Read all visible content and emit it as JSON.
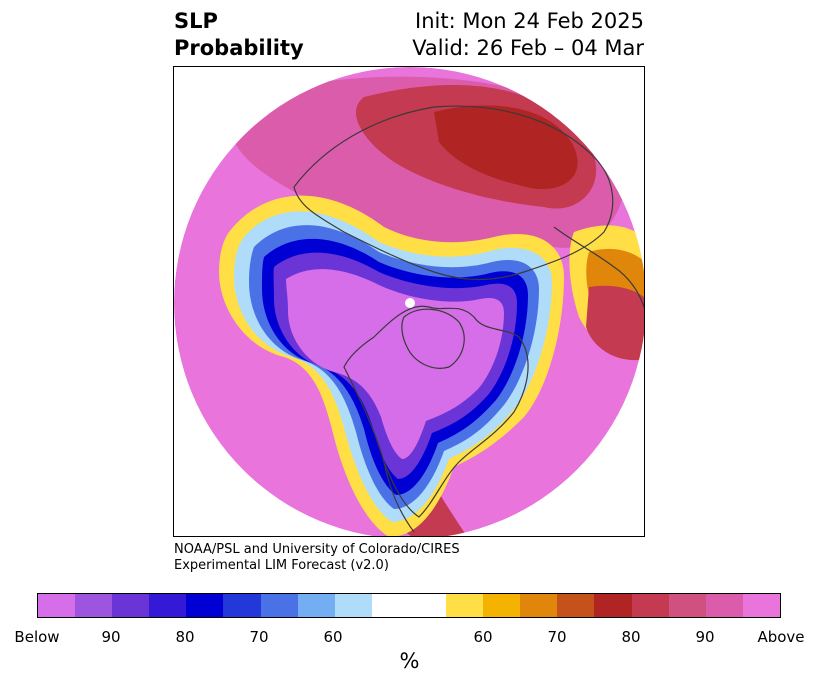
{
  "header": {
    "title_line1": "SLP",
    "title_line2": "Probability",
    "init": "Init: Mon 24 Feb 2025",
    "valid": "Valid: 26 Feb – 04 Mar"
  },
  "credit": {
    "line1": "NOAA/PSL and University of Colorado/CIRES",
    "line2": "Experimental LIM Forecast (v2.0)"
  },
  "colorbar": {
    "unit": "%",
    "colors": [
      "#d56ee8",
      "#9d55e0",
      "#6b34d6",
      "#3419d6",
      "#0000d4",
      "#2338d8",
      "#4a72e6",
      "#73aef2",
      "#aedcf9",
      "#ffffff",
      "#ffdf45",
      "#f4b300",
      "#e0860a",
      "#c4521a",
      "#b02424",
      "#c43a50",
      "#d05080",
      "#dc5cac",
      "#e874dc"
    ],
    "tick_labels": [
      "Below",
      "90",
      "80",
      "70",
      "60",
      "60",
      "70",
      "80",
      "90",
      "Above"
    ]
  },
  "map": {
    "colors": {
      "strong_above": "#e874dc",
      "above_90": "#dc5cac",
      "above_85": "#d05080",
      "above_80": "#c43a50",
      "above_75": "#b02424",
      "above_65": "#e0860a",
      "above_60": "#ffdf45",
      "below_60": "#aedcf9",
      "below_70": "#4a72e6",
      "below_80": "#0000d4",
      "below_90": "#6b34d6",
      "strong_below": "#d56ee8",
      "coastline": "#3a3a3a"
    }
  }
}
